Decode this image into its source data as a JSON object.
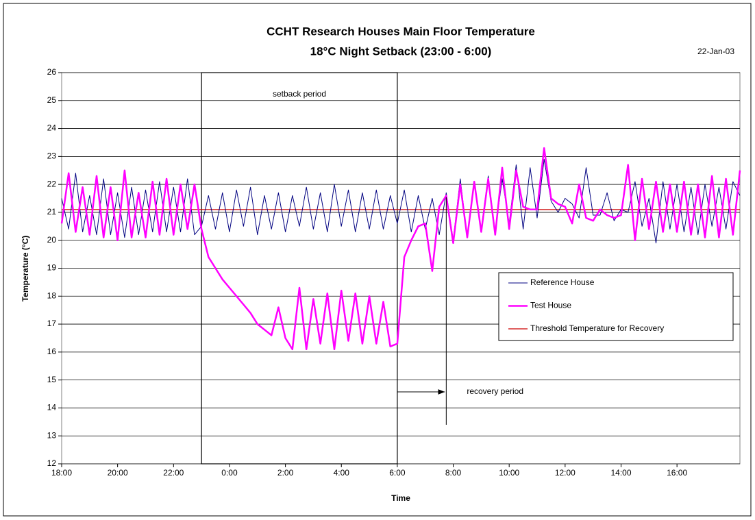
{
  "chart_data": {
    "type": "line",
    "title": "CCHT Research Houses Main Floor Temperature",
    "subtitle": "18°C Night Setback (23:00 - 6:00)",
    "date": "22-Jan-03",
    "x_label": "Time",
    "y_label": "Temperature (°C)",
    "x": [
      0,
      0.25,
      0.5,
      0.75,
      1,
      1.25,
      1.5,
      1.75,
      2,
      2.25,
      2.5,
      2.75,
      3,
      3.25,
      3.5,
      3.75,
      4,
      4.25,
      4.5,
      4.75,
      5,
      5.25,
      5.5,
      5.75,
      6,
      6.25,
      6.5,
      6.75,
      7,
      7.25,
      7.5,
      7.75,
      8,
      8.25,
      8.5,
      8.75,
      9,
      9.25,
      9.5,
      9.75,
      10,
      10.25,
      10.5,
      10.75,
      11,
      11.25,
      11.5,
      11.75,
      12,
      12.25,
      12.5,
      12.75,
      13,
      13.25,
      13.5,
      13.75,
      14,
      14.25,
      14.5,
      14.75,
      15,
      15.25,
      15.5,
      15.75,
      16,
      16.25,
      16.5,
      16.75,
      17,
      17.25,
      17.5,
      17.75,
      18,
      18.25,
      18.5,
      18.75,
      19,
      19.25,
      19.5,
      19.75,
      20,
      20.25,
      20.5,
      20.75,
      21,
      21.25,
      21.5,
      21.75,
      22,
      22.25,
      22.5,
      22.75,
      23,
      23.25,
      23.5,
      23.75,
      24,
      24.25
    ],
    "series": [
      {
        "name": "Reference House",
        "color": "#000080",
        "width": 1,
        "values": [
          21.5,
          20.4,
          22.4,
          20.3,
          21.6,
          20.2,
          22.2,
          20.2,
          21.7,
          20.1,
          21.9,
          20.2,
          21.8,
          20.3,
          22.1,
          20.3,
          21.9,
          20.3,
          22.2,
          20.2,
          20.5,
          21.6,
          20.4,
          21.7,
          20.3,
          21.8,
          20.5,
          21.9,
          20.2,
          21.6,
          20.4,
          21.7,
          20.3,
          21.6,
          20.5,
          21.9,
          20.4,
          21.7,
          20.3,
          22.0,
          20.5,
          21.8,
          20.3,
          21.7,
          20.4,
          21.8,
          20.4,
          21.6,
          20.6,
          21.8,
          20.3,
          21.6,
          20.4,
          21.5,
          20.2,
          21.7,
          20.0,
          22.2,
          20.1,
          22.0,
          20.4,
          22.3,
          20.3,
          22.2,
          20.6,
          22.7,
          20.4,
          22.6,
          20.8,
          22.9,
          21.4,
          21.0,
          21.5,
          21.3,
          20.8,
          22.6,
          20.9,
          20.9,
          21.7,
          20.7,
          21.1,
          21.0,
          22.1,
          20.5,
          21.5,
          19.9,
          22.1,
          20.4,
          22.0,
          20.3,
          21.9,
          20.2,
          22.0,
          20.5,
          21.9,
          20.4,
          22.1,
          21.6
        ]
      },
      {
        "name": "Test House",
        "color": "#ff00ff",
        "width": 2.5,
        "values": [
          20.6,
          22.4,
          20.3,
          21.9,
          20.2,
          22.3,
          20.1,
          21.9,
          20.0,
          22.5,
          20.1,
          21.7,
          20.1,
          22.1,
          20.2,
          22.2,
          20.2,
          22.0,
          20.4,
          22.0,
          20.4,
          19.4,
          19.0,
          18.6,
          18.3,
          18.0,
          17.7,
          17.4,
          17.0,
          16.8,
          16.6,
          17.6,
          16.5,
          16.1,
          18.3,
          16.1,
          17.9,
          16.3,
          18.1,
          16.1,
          18.2,
          16.4,
          18.1,
          16.3,
          18.0,
          16.3,
          17.8,
          16.2,
          16.3,
          19.4,
          20.0,
          20.5,
          20.6,
          18.9,
          21.2,
          21.6,
          19.9,
          22.0,
          20.1,
          22.1,
          20.3,
          22.2,
          20.2,
          22.6,
          20.4,
          22.5,
          21.2,
          21.1,
          21.1,
          23.3,
          21.5,
          21.3,
          21.2,
          20.6,
          22.0,
          20.8,
          20.7,
          21.1,
          20.9,
          20.8,
          20.9,
          22.7,
          20.0,
          22.2,
          20.4,
          22.1,
          20.3,
          22.0,
          20.3,
          22.1,
          20.2,
          22.0,
          20.1,
          22.3,
          20.1,
          22.2,
          20.2,
          22.5
        ]
      }
    ],
    "reference_line": {
      "name": "Threshold Temperature for Recovery",
      "color": "#cc0000",
      "y": 21.1
    },
    "setback": {
      "label": "setback period",
      "start": 5,
      "end": 12
    },
    "recovery": {
      "label": "recovery period",
      "start": 12,
      "end": 13.75
    },
    "xlim": [
      0,
      24.25
    ],
    "xticks": [
      {
        "value": 0,
        "label": "18:00"
      },
      {
        "value": 2,
        "label": "20:00"
      },
      {
        "value": 4,
        "label": "22:00"
      },
      {
        "value": 6,
        "label": "0:00"
      },
      {
        "value": 8,
        "label": "2:00"
      },
      {
        "value": 10,
        "label": "4:00"
      },
      {
        "value": 12,
        "label": "6:00"
      },
      {
        "value": 14,
        "label": "8:00"
      },
      {
        "value": 16,
        "label": "10:00"
      },
      {
        "value": 18,
        "label": "12:00"
      },
      {
        "value": 20,
        "label": "14:00"
      },
      {
        "value": 22,
        "label": "16:00"
      }
    ],
    "ylim": [
      12,
      26
    ],
    "yticks": [
      12,
      13,
      14,
      15,
      16,
      17,
      18,
      19,
      20,
      21,
      22,
      23,
      24,
      25,
      26
    ],
    "grid": true,
    "legend": "right"
  }
}
